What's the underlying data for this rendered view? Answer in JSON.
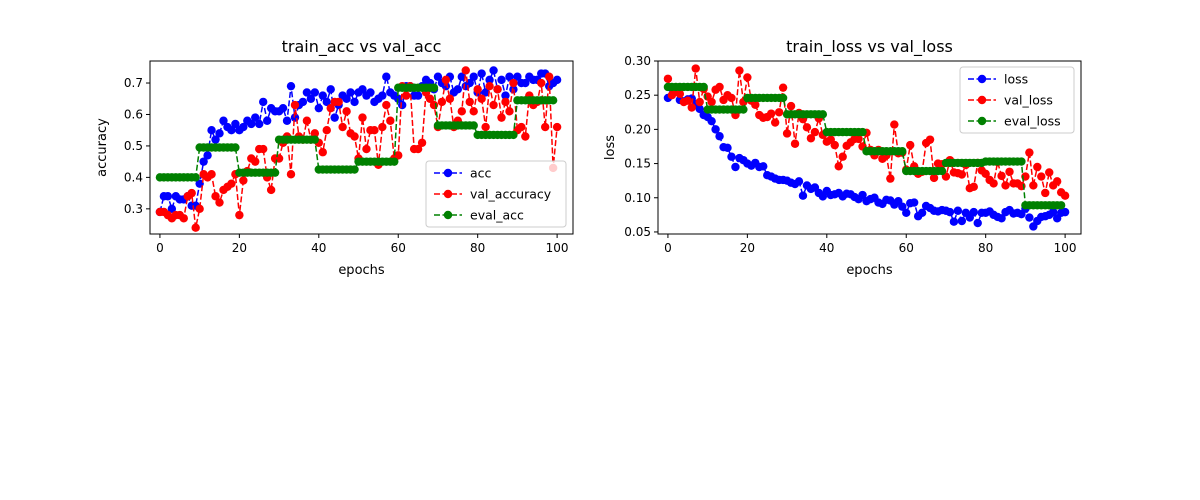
{
  "colors": {
    "acc": "#0000ff",
    "val": "#ff0000",
    "eval": "#008000"
  },
  "chart_data": [
    {
      "type": "line",
      "title": "train_acc vs val_acc",
      "xlabel": "epochs",
      "ylabel": "accuracy",
      "xlim": [
        -2.5,
        104
      ],
      "ylim": [
        0.22,
        0.77
      ],
      "xticks": [
        0,
        20,
        40,
        60,
        80,
        100
      ],
      "yticks": [
        0.3,
        0.4,
        0.5,
        0.6,
        0.7
      ],
      "legend_position": "lower-right",
      "series": [
        {
          "name": "acc",
          "color": "#0000ff",
          "values": [
            0.29,
            0.34,
            0.34,
            0.3,
            0.34,
            0.33,
            0.33,
            0.34,
            0.31,
            0.31,
            0.38,
            0.45,
            0.47,
            0.55,
            0.52,
            0.54,
            0.58,
            0.56,
            0.55,
            0.57,
            0.55,
            0.56,
            0.58,
            0.57,
            0.59,
            0.57,
            0.64,
            0.58,
            0.62,
            0.61,
            0.61,
            0.62,
            0.58,
            0.69,
            0.59,
            0.63,
            0.64,
            0.67,
            0.65,
            0.67,
            0.62,
            0.66,
            0.64,
            0.68,
            0.59,
            0.63,
            0.66,
            0.65,
            0.67,
            0.64,
            0.67,
            0.68,
            0.66,
            0.67,
            0.64,
            0.65,
            0.66,
            0.72,
            0.67,
            0.66,
            0.65,
            0.63,
            0.69,
            0.69,
            0.66,
            0.66,
            0.69,
            0.71,
            0.7,
            0.68,
            0.72,
            0.7,
            0.69,
            0.72,
            0.67,
            0.68,
            0.72,
            0.69,
            0.7,
            0.72,
            0.67,
            0.73,
            0.67,
            0.71,
            0.74,
            0.68,
            0.71,
            0.66,
            0.72,
            0.68,
            0.72,
            0.7,
            0.7,
            0.72,
            0.71,
            0.71,
            0.73,
            0.73,
            0.69,
            0.7,
            0.71
          ]
        },
        {
          "name": "val_accuracy",
          "color": "#ff0000",
          "values": [
            0.29,
            0.29,
            0.28,
            0.27,
            0.28,
            0.28,
            0.27,
            0.34,
            0.35,
            0.24,
            0.3,
            0.41,
            0.4,
            0.41,
            0.34,
            0.32,
            0.36,
            0.37,
            0.38,
            0.41,
            0.28,
            0.39,
            0.42,
            0.46,
            0.45,
            0.49,
            0.49,
            0.4,
            0.36,
            0.46,
            0.46,
            0.51,
            0.53,
            0.41,
            0.63,
            0.53,
            0.52,
            0.58,
            0.52,
            0.54,
            0.51,
            0.48,
            0.55,
            0.62,
            0.64,
            0.64,
            0.56,
            0.61,
            0.54,
            0.53,
            0.46,
            0.59,
            0.49,
            0.55,
            0.55,
            0.44,
            0.56,
            0.63,
            0.58,
            0.46,
            0.47,
            0.69,
            0.66,
            0.69,
            0.49,
            0.49,
            0.51,
            0.67,
            0.65,
            0.63,
            0.56,
            0.64,
            0.71,
            0.65,
            0.56,
            0.58,
            0.61,
            0.74,
            0.64,
            0.61,
            0.68,
            0.65,
            0.56,
            0.69,
            0.63,
            0.68,
            0.59,
            0.64,
            0.61,
            0.7,
            0.55,
            0.56,
            0.53,
            0.66,
            0.63,
            0.64,
            0.7,
            0.56,
            0.72,
            0.43,
            0.56
          ]
        },
        {
          "name": "eval_acc",
          "color": "#008000",
          "values": [
            0.4,
            0.4,
            0.4,
            0.4,
            0.4,
            0.4,
            0.4,
            0.4,
            0.4,
            0.4,
            0.495,
            0.495,
            0.495,
            0.495,
            0.495,
            0.495,
            0.495,
            0.495,
            0.495,
            0.495,
            0.415,
            0.415,
            0.415,
            0.415,
            0.415,
            0.415,
            0.415,
            0.415,
            0.415,
            0.415,
            0.52,
            0.52,
            0.52,
            0.52,
            0.52,
            0.52,
            0.52,
            0.52,
            0.52,
            0.52,
            0.425,
            0.425,
            0.425,
            0.425,
            0.425,
            0.425,
            0.425,
            0.425,
            0.425,
            0.425,
            0.45,
            0.45,
            0.45,
            0.45,
            0.45,
            0.45,
            0.45,
            0.45,
            0.45,
            0.45,
            0.685,
            0.685,
            0.685,
            0.685,
            0.685,
            0.685,
            0.685,
            0.685,
            0.685,
            0.685,
            0.565,
            0.565,
            0.565,
            0.565,
            0.565,
            0.565,
            0.565,
            0.565,
            0.565,
            0.565,
            0.535,
            0.535,
            0.535,
            0.535,
            0.535,
            0.535,
            0.535,
            0.535,
            0.535,
            0.535,
            0.645,
            0.645,
            0.645,
            0.645,
            0.645,
            0.645,
            0.645,
            0.645,
            0.645,
            0.645
          ]
        }
      ]
    },
    {
      "type": "line",
      "title": "train_loss vs val_loss",
      "xlabel": "epochs",
      "ylabel": "loss",
      "xlim": [
        -2.5,
        104
      ],
      "ylim": [
        0.047,
        0.3
      ],
      "xticks": [
        0,
        20,
        40,
        60,
        80,
        100
      ],
      "yticks": [
        0.05,
        0.1,
        0.15,
        0.2,
        0.25,
        0.3
      ],
      "legend_position": "top-right",
      "series": [
        {
          "name": "loss",
          "color": "#0000ff",
          "values": [
            0.246,
            0.26,
            0.258,
            0.243,
            0.241,
            0.244,
            0.245,
            0.237,
            0.23,
            0.221,
            0.218,
            0.212,
            0.2,
            0.19,
            0.174,
            0.173,
            0.16,
            0.145,
            0.158,
            0.155,
            0.15,
            0.147,
            0.151,
            0.145,
            0.146,
            0.133,
            0.131,
            0.128,
            0.126,
            0.126,
            0.125,
            0.122,
            0.12,
            0.124,
            0.103,
            0.118,
            0.113,
            0.115,
            0.107,
            0.102,
            0.11,
            0.104,
            0.105,
            0.107,
            0.102,
            0.106,
            0.105,
            0.101,
            0.098,
            0.104,
            0.095,
            0.098,
            0.1,
            0.093,
            0.091,
            0.097,
            0.096,
            0.09,
            0.095,
            0.087,
            0.078,
            0.092,
            0.093,
            0.073,
            0.078,
            0.088,
            0.085,
            0.081,
            0.08,
            0.082,
            0.081,
            0.079,
            0.065,
            0.081,
            0.066,
            0.078,
            0.071,
            0.079,
            0.063,
            0.078,
            0.078,
            0.08,
            0.075,
            0.072,
            0.07,
            0.079,
            0.082,
            0.077,
            0.078,
            0.076,
            0.084,
            0.071,
            0.058,
            0.066,
            0.072,
            0.073,
            0.075,
            0.079,
            0.07,
            0.078,
            0.079
          ]
        },
        {
          "name": "val_loss",
          "color": "#ff0000",
          "values": [
            0.274,
            0.25,
            0.255,
            0.252,
            0.24,
            0.242,
            0.232,
            0.289,
            0.24,
            0.259,
            0.248,
            0.24,
            0.258,
            0.262,
            0.243,
            0.25,
            0.246,
            0.221,
            0.286,
            0.24,
            0.276,
            0.242,
            0.236,
            0.221,
            0.217,
            0.218,
            0.223,
            0.21,
            0.225,
            0.261,
            0.194,
            0.234,
            0.179,
            0.224,
            0.215,
            0.203,
            0.187,
            0.196,
            0.216,
            0.192,
            0.182,
            0.185,
            0.177,
            0.146,
            0.16,
            0.176,
            0.181,
            0.186,
            0.186,
            0.175,
            0.195,
            0.17,
            0.162,
            0.17,
            0.157,
            0.162,
            0.128,
            0.207,
            0.165,
            0.166,
            0.141,
            0.177,
            0.146,
            0.135,
            0.138,
            0.18,
            0.185,
            0.129,
            0.15,
            0.149,
            0.131,
            0.155,
            0.137,
            0.136,
            0.134,
            0.148,
            0.114,
            0.116,
            0.151,
            0.14,
            0.135,
            0.126,
            0.121,
            0.152,
            0.132,
            0.118,
            0.138,
            0.121,
            0.121,
            0.117,
            0.131,
            0.166,
            0.118,
            0.145,
            0.131,
            0.107,
            0.137,
            0.118,
            0.124,
            0.108,
            0.103
          ]
        },
        {
          "name": "eval_loss",
          "color": "#008000",
          "values": [
            0.262,
            0.262,
            0.262,
            0.262,
            0.262,
            0.262,
            0.262,
            0.262,
            0.262,
            0.262,
            0.229,
            0.229,
            0.229,
            0.229,
            0.229,
            0.229,
            0.229,
            0.229,
            0.229,
            0.229,
            0.246,
            0.246,
            0.246,
            0.246,
            0.246,
            0.246,
            0.246,
            0.246,
            0.246,
            0.246,
            0.222,
            0.222,
            0.222,
            0.222,
            0.222,
            0.222,
            0.222,
            0.222,
            0.222,
            0.222,
            0.196,
            0.196,
            0.196,
            0.196,
            0.196,
            0.196,
            0.196,
            0.196,
            0.196,
            0.196,
            0.168,
            0.168,
            0.168,
            0.168,
            0.168,
            0.168,
            0.168,
            0.168,
            0.168,
            0.168,
            0.139,
            0.139,
            0.139,
            0.139,
            0.139,
            0.139,
            0.139,
            0.139,
            0.139,
            0.139,
            0.151,
            0.151,
            0.151,
            0.151,
            0.151,
            0.151,
            0.151,
            0.151,
            0.151,
            0.151,
            0.153,
            0.153,
            0.153,
            0.153,
            0.153,
            0.153,
            0.153,
            0.153,
            0.153,
            0.153,
            0.089,
            0.089,
            0.089,
            0.089,
            0.089,
            0.089,
            0.089,
            0.089,
            0.089,
            0.089
          ]
        }
      ]
    }
  ]
}
